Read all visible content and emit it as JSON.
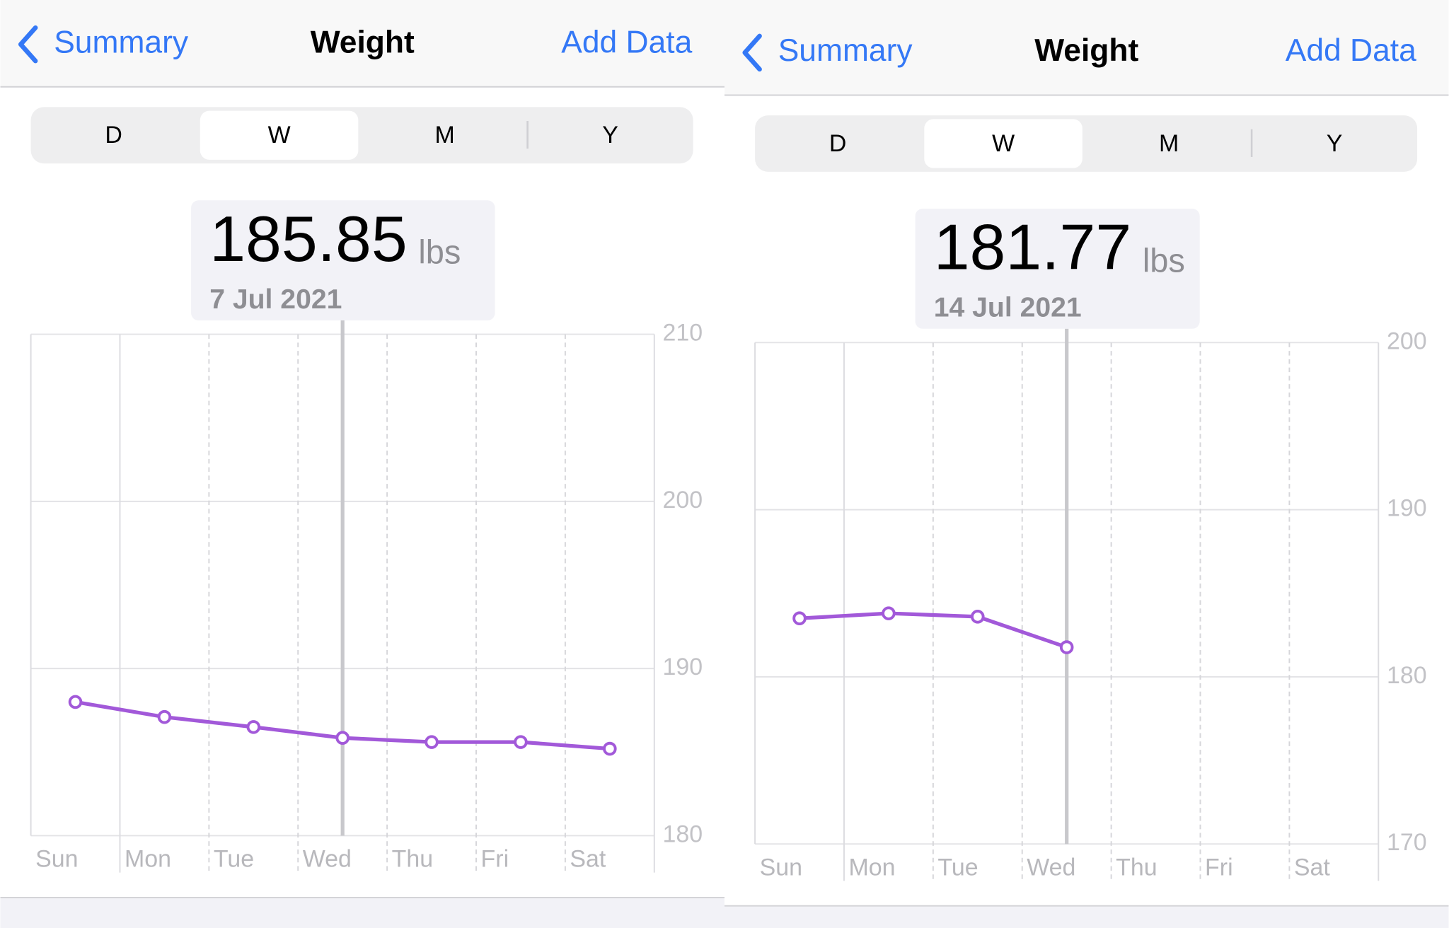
{
  "panels": [
    {
      "back": "Summary",
      "title": "Weight",
      "action": "Add Data",
      "segments": [
        "D",
        "W",
        "M",
        "Y"
      ],
      "selected_segment": 1,
      "readout": {
        "value": "185.85",
        "unit": "lbs",
        "date": "7 Jul 2021"
      }
    },
    {
      "back": "Summary",
      "title": "Weight",
      "action": "Add Data",
      "segments": [
        "D",
        "W",
        "M",
        "Y"
      ],
      "selected_segment": 1,
      "readout": {
        "value": "181.77",
        "unit": "lbs",
        "date": "14 Jul 2021"
      }
    }
  ],
  "chart_data": [
    {
      "type": "line",
      "categories": [
        "Sun",
        "Mon",
        "Tue",
        "Wed",
        "Thu",
        "Fri",
        "Sat"
      ],
      "values": [
        188.0,
        187.1,
        186.5,
        185.85,
        185.6,
        185.6,
        185.2
      ],
      "color": "#a259d9",
      "ylim": [
        180,
        210
      ],
      "yticks": [
        180,
        190,
        200,
        210
      ],
      "grid": true,
      "highlight_index": 3
    },
    {
      "type": "line",
      "categories": [
        "Sun",
        "Mon",
        "Tue",
        "Wed",
        "Thu",
        "Fri",
        "Sat"
      ],
      "values": [
        183.5,
        183.8,
        183.6,
        181.77,
        null,
        null,
        null
      ],
      "color": "#a259d9",
      "ylim": [
        170,
        200
      ],
      "yticks": [
        170,
        180,
        190,
        200
      ],
      "grid": true,
      "highlight_index": 3
    }
  ]
}
